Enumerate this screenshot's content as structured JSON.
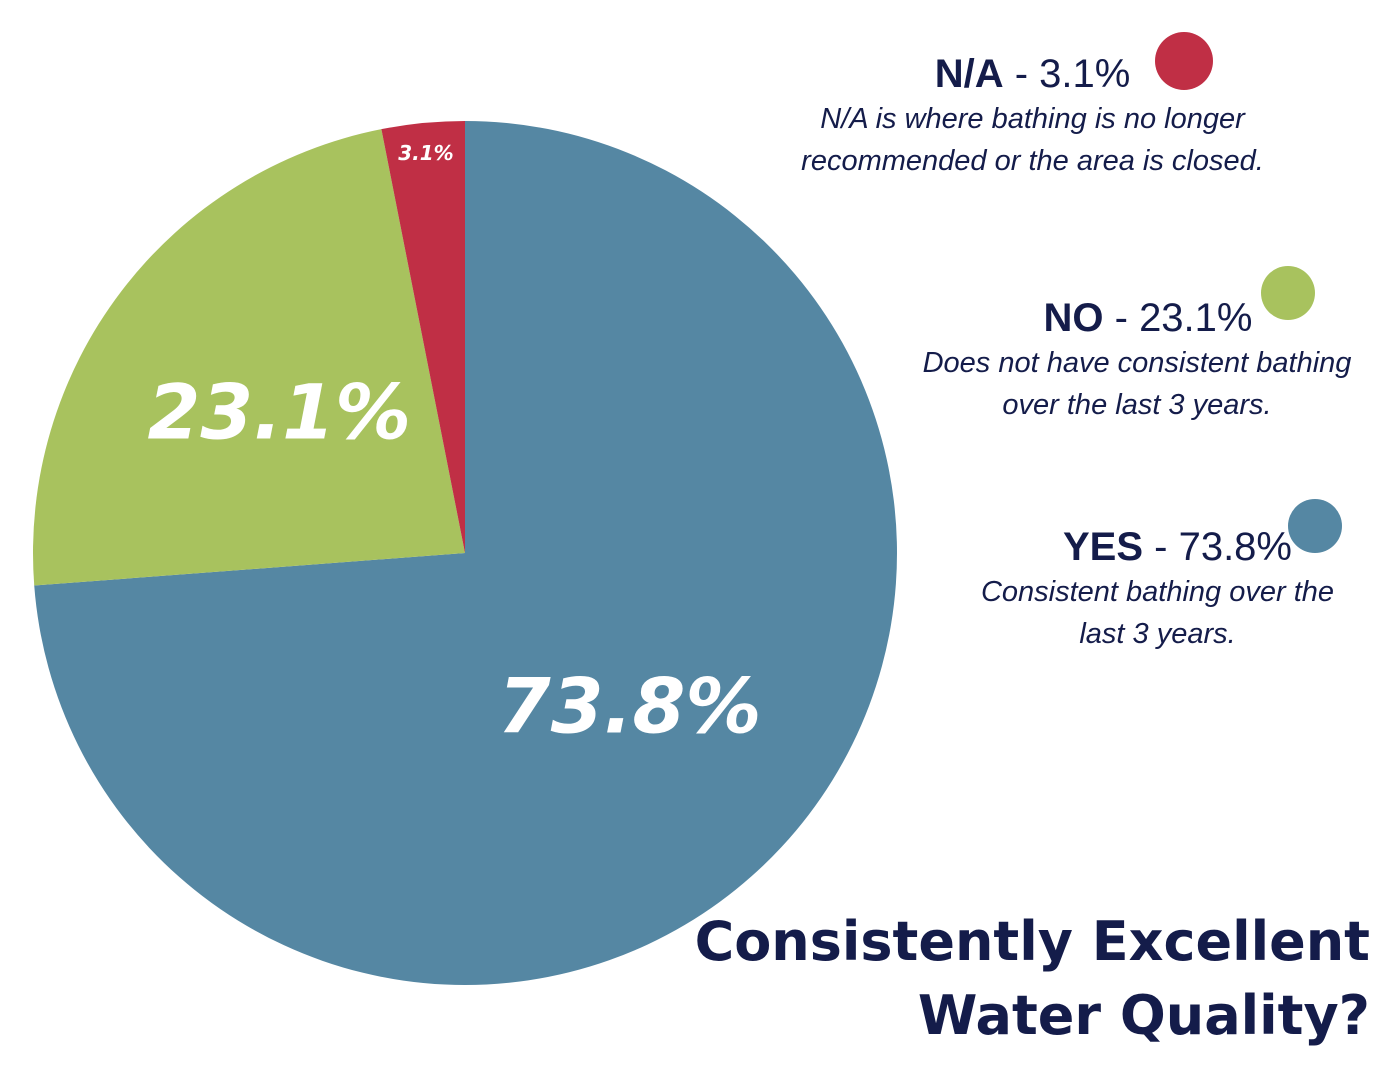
{
  "chart_data": {
    "type": "pie",
    "title": "Consistently Excellent Water Quality?",
    "slices": [
      {
        "label": "N/A",
        "value": 3.1,
        "display": "3.1%",
        "color": "#c02f45",
        "description": "N/A is where bathing is no longer recommended or the area is closed.",
        "desc_lines": [
          "N/A is where bathing is no longer",
          "recommended or the area is closed."
        ]
      },
      {
        "label": "NO",
        "value": 23.1,
        "display": "23.1%",
        "color": "#a8c25e",
        "description": "Does not have consistent bathing over the last 3 years.",
        "desc_lines": [
          "Does not have consistent bathing",
          "over the last 3 years."
        ]
      },
      {
        "label": "YES",
        "value": 73.8,
        "display": "73.8%",
        "color": "#5587a3",
        "description": "Consistent bathing over the last 3 years.",
        "desc_lines": [
          "Consistent bathing over the",
          "last 3 years."
        ]
      }
    ]
  },
  "legend": {
    "separator": " - "
  },
  "title_lines": [
    "Consistently Excellent",
    "Water Quality?"
  ]
}
